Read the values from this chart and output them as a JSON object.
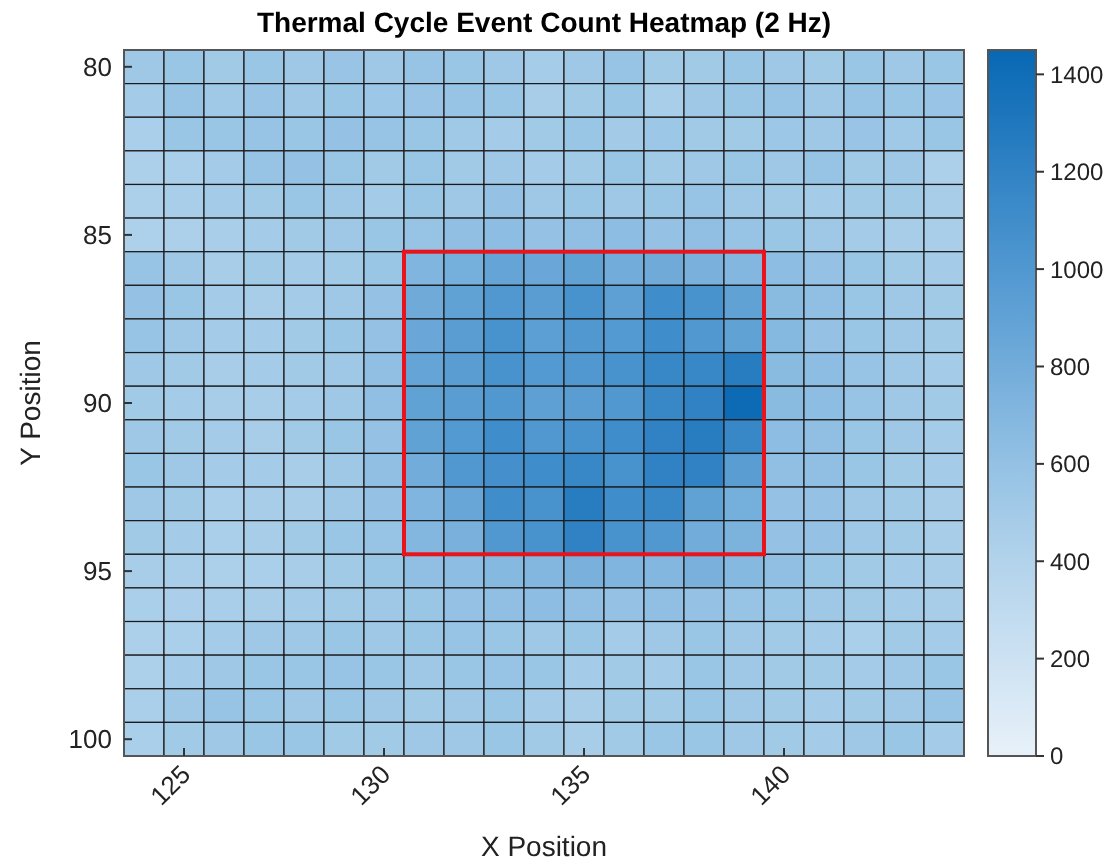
{
  "chart_data": {
    "type": "heatmap",
    "title": "Thermal Cycle Event Count Heatmap (2 Hz)",
    "xlabel": "X Position",
    "ylabel": "Y Position",
    "x": [
      124,
      125,
      126,
      127,
      128,
      129,
      130,
      131,
      132,
      133,
      134,
      135,
      136,
      137,
      138,
      139,
      140,
      141,
      142,
      143,
      144
    ],
    "y": [
      80,
      81,
      82,
      83,
      84,
      85,
      86,
      87,
      88,
      89,
      90,
      91,
      92,
      93,
      94,
      95,
      96,
      97,
      98,
      99,
      100
    ],
    "xlim": [
      123.5,
      144.5
    ],
    "ylim": [
      100.5,
      79.5
    ],
    "xticks": [
      125,
      130,
      135,
      140
    ],
    "yticks": [
      80,
      85,
      90,
      95,
      100
    ],
    "clim": [
      0,
      1450
    ],
    "cticks": [
      0,
      200,
      400,
      600,
      800,
      1000,
      1200,
      1400
    ],
    "cells": [
      [
        540,
        560,
        520,
        560,
        540,
        570,
        540,
        580,
        560,
        540,
        490,
        540,
        580,
        520,
        520,
        560,
        540,
        520,
        560,
        540,
        560
      ],
      [
        500,
        580,
        530,
        570,
        540,
        560,
        550,
        570,
        580,
        560,
        480,
        520,
        560,
        470,
        540,
        560,
        580,
        540,
        580,
        560,
        570
      ],
      [
        460,
        560,
        560,
        580,
        560,
        590,
        580,
        560,
        530,
        500,
        520,
        560,
        510,
        550,
        520,
        520,
        550,
        540,
        570,
        530,
        560
      ],
      [
        440,
        460,
        500,
        580,
        600,
        560,
        520,
        560,
        520,
        540,
        500,
        520,
        560,
        520,
        540,
        560,
        540,
        580,
        520,
        540,
        440
      ],
      [
        440,
        470,
        500,
        520,
        560,
        540,
        500,
        560,
        540,
        600,
        540,
        560,
        540,
        560,
        580,
        540,
        520,
        500,
        520,
        520,
        480
      ],
      [
        430,
        440,
        470,
        500,
        520,
        540,
        560,
        580,
        620,
        640,
        600,
        620,
        640,
        600,
        620,
        580,
        560,
        540,
        500,
        480,
        470
      ],
      [
        580,
        540,
        480,
        520,
        500,
        520,
        560,
        720,
        780,
        880,
        850,
        900,
        800,
        820,
        760,
        700,
        640,
        600,
        560,
        520,
        500
      ],
      [
        600,
        560,
        500,
        480,
        500,
        540,
        600,
        820,
        900,
        1000,
        950,
        1050,
        920,
        1100,
        1050,
        900,
        660,
        620,
        560,
        540,
        520
      ],
      [
        580,
        540,
        500,
        500,
        520,
        560,
        600,
        850,
        950,
        1050,
        930,
        1000,
        980,
        1100,
        1000,
        900,
        680,
        600,
        560,
        540,
        520
      ],
      [
        540,
        520,
        480,
        500,
        520,
        540,
        620,
        880,
        950,
        1050,
        980,
        1000,
        1050,
        1150,
        1150,
        1250,
        660,
        640,
        580,
        540,
        500
      ],
      [
        520,
        500,
        480,
        480,
        500,
        540,
        620,
        900,
        950,
        1000,
        920,
        950,
        1000,
        1150,
        1200,
        1420,
        660,
        640,
        580,
        540,
        520
      ],
      [
        540,
        520,
        500,
        480,
        520,
        560,
        600,
        900,
        980,
        1100,
        1000,
        1050,
        1100,
        1200,
        1250,
        1150,
        640,
        620,
        560,
        540,
        500
      ],
      [
        560,
        540,
        500,
        500,
        480,
        540,
        620,
        800,
        1000,
        1080,
        1100,
        1150,
        1050,
        1200,
        1200,
        950,
        620,
        620,
        560,
        520,
        500
      ],
      [
        540,
        520,
        460,
        480,
        480,
        540,
        600,
        720,
        860,
        1100,
        1050,
        1250,
        1100,
        1150,
        900,
        780,
        600,
        600,
        540,
        520,
        480
      ],
      [
        520,
        500,
        460,
        480,
        520,
        560,
        580,
        700,
        760,
        1000,
        1050,
        1200,
        1050,
        1000,
        800,
        740,
        600,
        600,
        540,
        520,
        480
      ],
      [
        480,
        470,
        440,
        460,
        480,
        520,
        560,
        620,
        640,
        680,
        700,
        760,
        720,
        700,
        760,
        680,
        620,
        560,
        520,
        500,
        480
      ],
      [
        460,
        450,
        470,
        480,
        500,
        520,
        540,
        560,
        600,
        620,
        640,
        620,
        600,
        620,
        600,
        580,
        560,
        540,
        520,
        500,
        480
      ],
      [
        440,
        460,
        500,
        540,
        540,
        560,
        540,
        560,
        580,
        560,
        540,
        560,
        500,
        540,
        560,
        540,
        520,
        500,
        460,
        520,
        500
      ],
      [
        440,
        500,
        540,
        560,
        560,
        580,
        560,
        540,
        560,
        580,
        560,
        500,
        520,
        500,
        560,
        540,
        520,
        520,
        500,
        540,
        560
      ],
      [
        460,
        540,
        580,
        560,
        540,
        560,
        540,
        520,
        540,
        560,
        500,
        480,
        520,
        520,
        560,
        540,
        520,
        500,
        520,
        540,
        580
      ],
      [
        460,
        520,
        540,
        560,
        560,
        520,
        520,
        540,
        540,
        560,
        520,
        480,
        520,
        560,
        560,
        540,
        520,
        500,
        540,
        560,
        500
      ]
    ]
  }
}
